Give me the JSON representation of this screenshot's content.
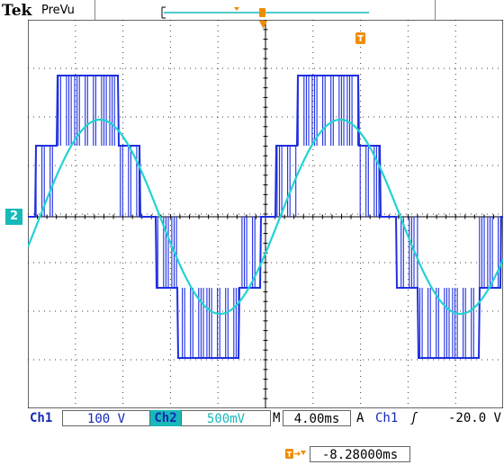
{
  "header": {
    "brand": "Tek",
    "acquisition_status": "PreVu"
  },
  "colors": {
    "ch1": "#1e2fe0",
    "ch2": "#21d3d3",
    "trigger": "#f08c00",
    "graticule": "#000000"
  },
  "markers": {
    "ch2_ground": "2",
    "trigger_icon": "trigger-T-icon"
  },
  "status_bar": {
    "ch1_label": "Ch1",
    "ch1_scale": "100 V",
    "ch2_label": "Ch2",
    "ch2_scale": "500mV",
    "timebase_label": "M",
    "timebase": "4.00ms",
    "trigger_mode": "A",
    "trigger_source": "Ch1",
    "trigger_slope": "ʃ",
    "trigger_level": "-20.0 V"
  },
  "horizontal_position": {
    "value": "-8.28000ms"
  }
}
